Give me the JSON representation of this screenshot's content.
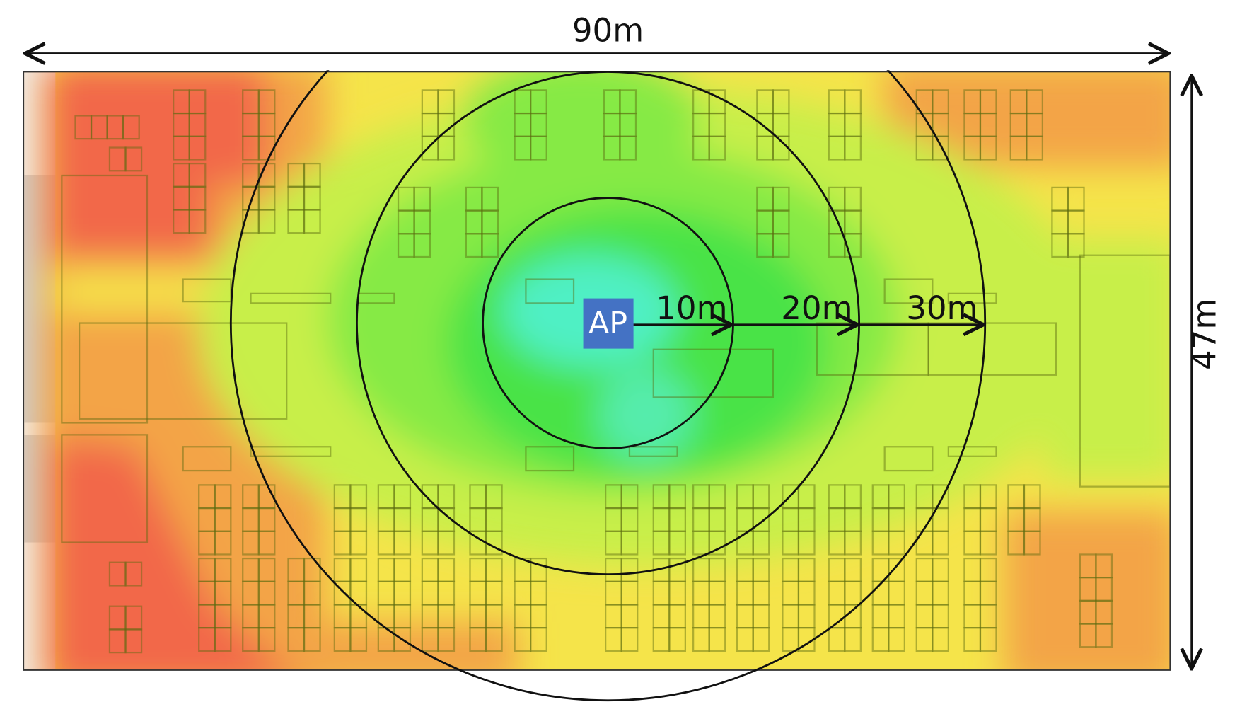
{
  "dimensions": {
    "width": "90m",
    "height": "47m"
  },
  "access_point": {
    "label": "AP"
  },
  "radii": [
    "10m",
    "20m",
    "30m"
  ]
}
